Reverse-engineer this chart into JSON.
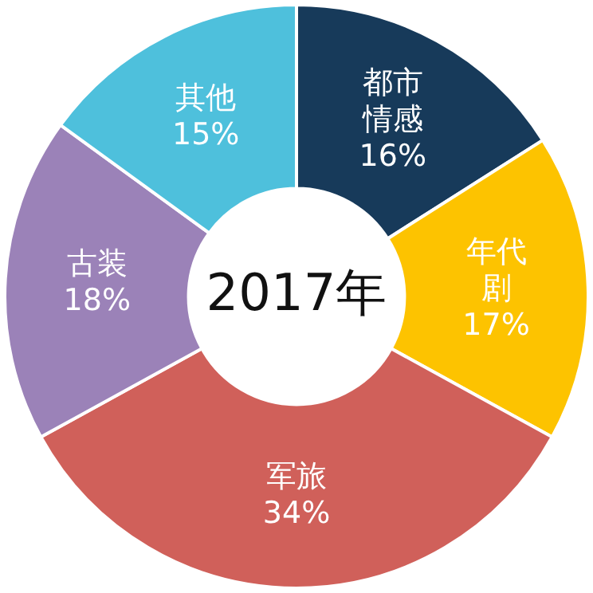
{
  "chart_data": {
    "type": "donut",
    "title": "2017年",
    "categories": [
      "都市情感",
      "年代剧",
      "军旅",
      "古装",
      "其他"
    ],
    "values": [
      16,
      17,
      34,
      18,
      15
    ],
    "colors": [
      "#173a5a",
      "#fdc300",
      "#d0605a",
      "#9b82b8",
      "#4ec0dc"
    ],
    "value_labels": [
      "16%",
      "17%",
      "34%",
      "18%",
      "15%"
    ],
    "legend": false
  }
}
